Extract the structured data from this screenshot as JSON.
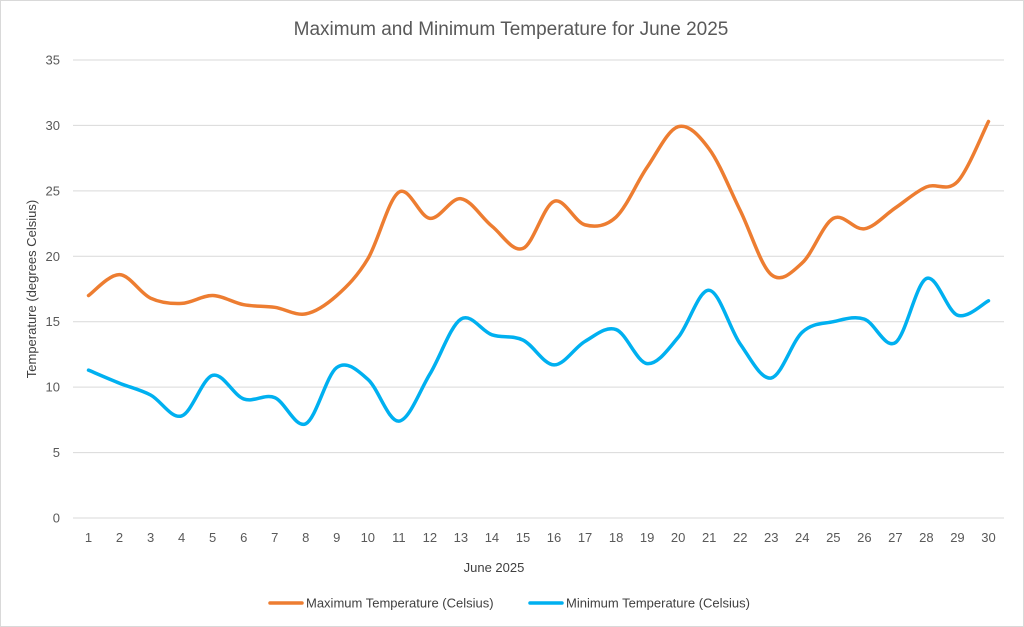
{
  "chart_data": {
    "type": "line",
    "title": "Maximum and Minimum Temperature for June 2025",
    "xlabel": "June 2025",
    "ylabel": "Temperature (degrees Celsius)",
    "ylim": [
      0,
      35
    ],
    "yticks": [
      0,
      5,
      10,
      15,
      20,
      25,
      30,
      35
    ],
    "grid": true,
    "legend_position": "bottom",
    "smooth": true,
    "categories": [
      "1",
      "2",
      "3",
      "4",
      "5",
      "6",
      "7",
      "8",
      "9",
      "10",
      "11",
      "12",
      "13",
      "14",
      "15",
      "16",
      "17",
      "18",
      "19",
      "20",
      "21",
      "22",
      "23",
      "24",
      "25",
      "26",
      "27",
      "28",
      "29",
      "30"
    ],
    "series": [
      {
        "name": "Maximum Temperature (Celsius)",
        "color": "#ed7d31",
        "values": [
          17.0,
          18.6,
          16.8,
          16.4,
          17.0,
          16.3,
          16.1,
          15.6,
          17.0,
          19.8,
          24.9,
          22.9,
          24.4,
          22.3,
          20.6,
          24.2,
          22.4,
          23.0,
          26.8,
          29.9,
          28.2,
          23.5,
          18.6,
          19.5,
          22.9,
          22.1,
          23.7,
          25.3,
          25.7,
          30.3
        ]
      },
      {
        "name": "Minimum Temperature (Celsius)",
        "color": "#00b0f0",
        "values": [
          11.3,
          10.3,
          9.4,
          7.8,
          10.9,
          9.1,
          9.2,
          7.2,
          11.5,
          10.6,
          7.4,
          11.0,
          15.2,
          14.0,
          13.6,
          11.7,
          13.5,
          14.4,
          11.8,
          13.8,
          17.4,
          13.3,
          10.7,
          14.2,
          15.0,
          15.2,
          13.4,
          18.3,
          15.5,
          16.6
        ]
      }
    ]
  }
}
